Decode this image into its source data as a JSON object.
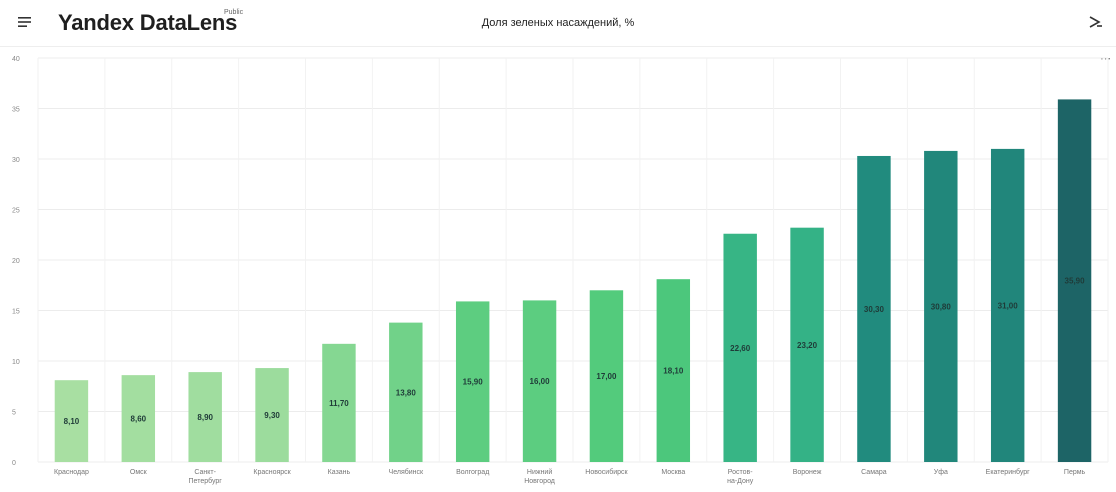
{
  "header": {
    "logo": "Yandex DataLens",
    "logo_badge": "Public",
    "title": "Доля зеленых насаждений, %"
  },
  "colors": {
    "bar_light": "#a8dfa2",
    "bar_mid": "#4fca7a",
    "bar_teal": "#24a48d",
    "bar_dark": "#1d6466",
    "grid": "#ececec"
  },
  "chart_data": {
    "type": "bar",
    "title": "Доля зеленых насаждений, %",
    "categories": [
      "Краснодар",
      "Омск",
      "Санкт-Петербург",
      "Красноярск",
      "Казань",
      "Челябинск",
      "Волгоград",
      "Нижний Новгород",
      "Новосибирск",
      "Москва",
      "Ростов-на-Дону",
      "Воронеж",
      "Самара",
      "Уфа",
      "Екатеринбург",
      "Пермь"
    ],
    "values": [
      8.1,
      8.6,
      8.9,
      9.3,
      11.7,
      13.8,
      15.9,
      16.0,
      17.0,
      18.1,
      22.6,
      23.2,
      30.3,
      30.8,
      31.0,
      35.9
    ],
    "value_labels": [
      "8,10",
      "8,60",
      "8,90",
      "9,30",
      "11,70",
      "13,80",
      "15,90",
      "16,00",
      "17,00",
      "18,10",
      "22,60",
      "23,20",
      "30,30",
      "30,80",
      "31,00",
      "35,90"
    ],
    "ylim": [
      0,
      40
    ],
    "yticks": [
      0,
      5,
      10,
      15,
      20,
      25,
      30,
      35,
      40
    ],
    "grid": true,
    "legend": "none",
    "xlabel": "",
    "ylabel": ""
  }
}
